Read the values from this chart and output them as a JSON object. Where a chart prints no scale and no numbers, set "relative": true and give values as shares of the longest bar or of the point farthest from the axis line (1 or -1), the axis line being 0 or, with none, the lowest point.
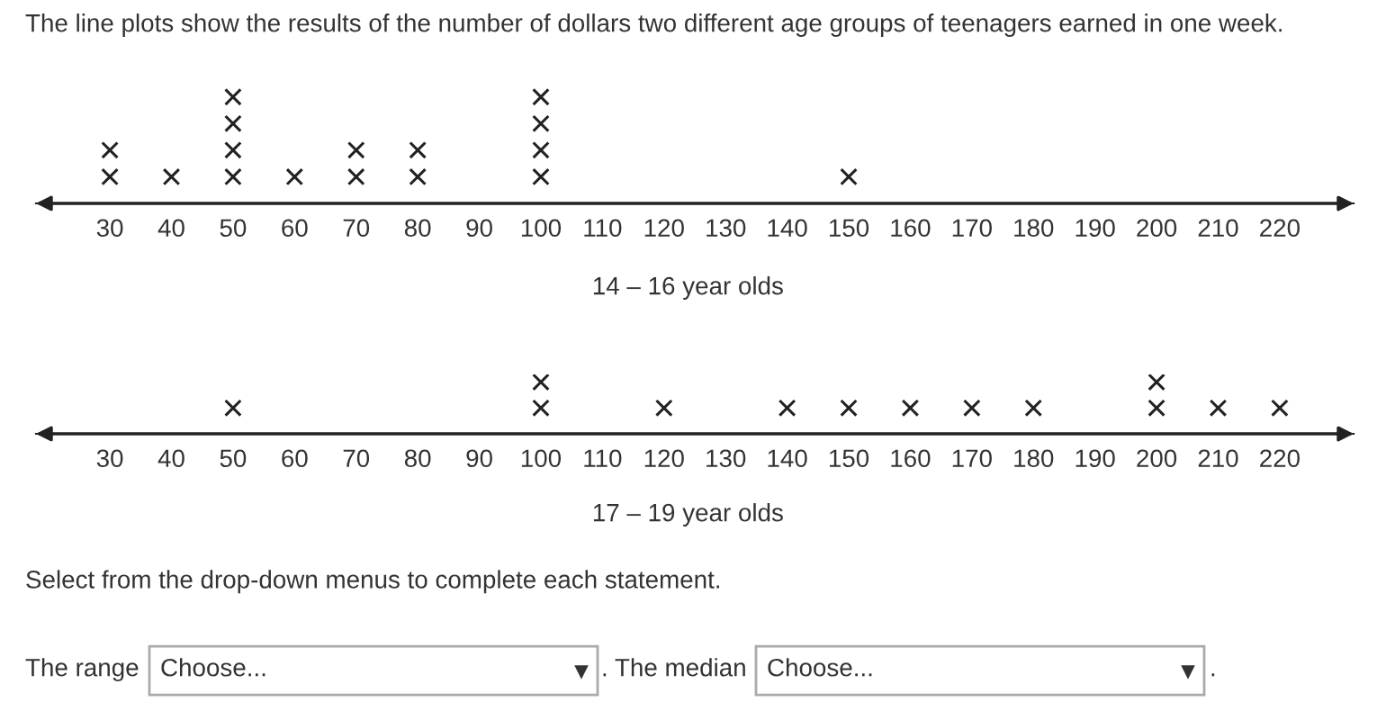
{
  "chart_data": [
    {
      "type": "scatter",
      "title": "The line plots show the results of the number of dollars two different age groups of teenagers earned in one week.",
      "xlabel": "14 – 16 year olds",
      "relative": true,
      "marker": "cross",
      "tick_labels": "x",
      "grid": false,
      "legend": false,
      "xlim": [
        18,
        232
      ],
      "xticks": [
        30,
        40,
        50,
        60,
        70,
        80,
        90,
        100,
        110,
        120,
        130,
        140,
        150,
        160,
        170,
        180,
        190,
        200,
        210,
        220
      ],
      "series": [
        {
          "color": "#222222",
          "x": [
            30,
            30,
            40,
            50,
            50,
            50,
            50,
            60,
            70,
            70,
            80,
            80,
            100,
            100,
            100,
            100,
            150
          ],
          "values": [
            0.25,
            0.5,
            0.25,
            0.25,
            0.5,
            0.75,
            1,
            0.25,
            0.25,
            0.5,
            0.25,
            0.5,
            0.25,
            0.5,
            0.75,
            1,
            0.25
          ]
        }
      ]
    },
    {
      "type": "scatter",
      "xlabel": "17 – 19 year olds",
      "relative": true,
      "marker": "cross",
      "tick_labels": "x",
      "grid": false,
      "legend": false,
      "xlim": [
        18,
        232
      ],
      "xticks": [
        30,
        40,
        50,
        60,
        70,
        80,
        90,
        100,
        110,
        120,
        130,
        140,
        150,
        160,
        170,
        180,
        190,
        200,
        210,
        220
      ],
      "series": [
        {
          "color": "#222222",
          "x": [
            50,
            100,
            100,
            120,
            140,
            150,
            160,
            170,
            180,
            200,
            200,
            210,
            220
          ],
          "values": [
            0.5,
            0.5,
            1,
            0.5,
            0.5,
            0.5,
            0.5,
            0.5,
            0.5,
            0.5,
            1,
            0.5,
            0.5
          ]
        }
      ]
    },
    {
      "type": "other",
      "annotations": [
        "Select from the drop-down menus to complete each statement.",
        "The range",
        "Choose...",
        ". The median",
        "Choose...",
        "."
      ]
    }
  ]
}
